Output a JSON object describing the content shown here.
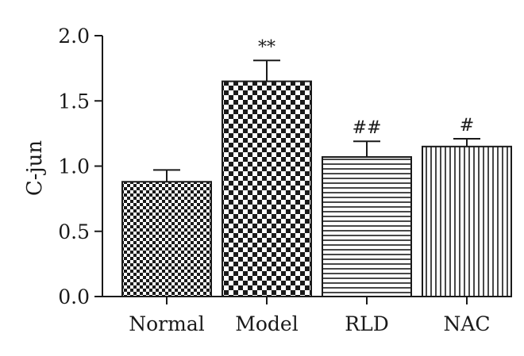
{
  "chart_data": {
    "type": "bar",
    "categories": [
      "Normal",
      "Model",
      "RLD",
      "NAC"
    ],
    "values": [
      0.88,
      1.65,
      1.07,
      1.15
    ],
    "errors": [
      0.09,
      0.16,
      0.12,
      0.06
    ],
    "annotations": [
      "",
      "**",
      "##",
      "#"
    ],
    "patterns": [
      "fine-checker",
      "coarse-checker",
      "horizontal-lines",
      "vertical-lines"
    ],
    "title": "",
    "xlabel": "",
    "ylabel": "C-jun",
    "ylim": [
      0,
      2.0
    ],
    "yticks": [
      "0.0",
      "0.5",
      "1.0",
      "1.5",
      "2.0"
    ],
    "grid": false,
    "legend": "none",
    "colors": {
      "ink": "#1a1a1a",
      "background": "#ffffff"
    }
  }
}
